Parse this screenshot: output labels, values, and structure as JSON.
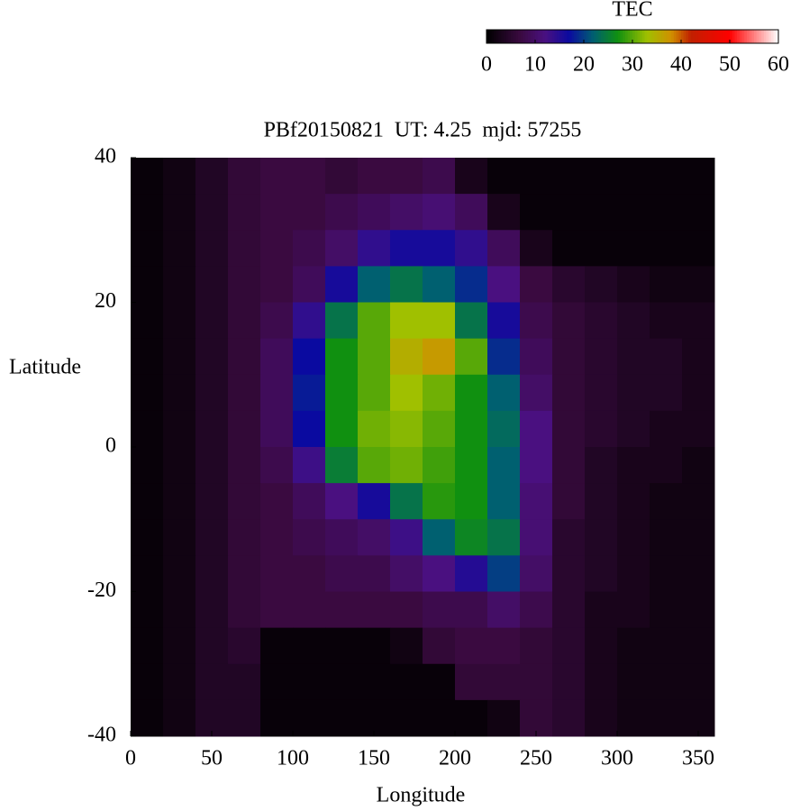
{
  "chart_data": {
    "type": "heatmap",
    "title": "PBf20150821  UT: 4.25  mjd: 57255",
    "xlabel": "Longitude",
    "ylabel": "Latitude",
    "colorbar_title": "TEC",
    "x": [
      10,
      30,
      50,
      70,
      90,
      110,
      130,
      150,
      170,
      190,
      210,
      230,
      250,
      270,
      290,
      310,
      330,
      350
    ],
    "y": [
      37.5,
      32.5,
      27.5,
      22.5,
      17.5,
      12.5,
      7.5,
      2.5,
      -2.5,
      -7.5,
      -12.5,
      -17.5,
      -22.5,
      -27.5,
      -32.5,
      -37.5
    ],
    "z": [
      [
        1,
        2,
        4,
        6,
        7,
        7,
        6,
        7,
        7,
        8,
        3,
        1,
        1,
        1,
        1,
        1,
        1,
        1
      ],
      [
        1,
        2,
        4,
        6,
        7,
        7,
        8,
        9,
        10,
        11,
        9,
        3,
        1,
        1,
        1,
        1,
        1,
        1
      ],
      [
        1,
        2,
        4,
        6,
        7,
        8,
        10,
        14,
        16,
        16,
        14,
        9,
        3,
        1,
        1,
        1,
        1,
        1
      ],
      [
        1,
        2,
        4,
        6,
        7,
        9,
        16,
        22,
        24,
        22,
        19,
        12,
        7,
        5,
        4,
        3,
        2,
        2
      ],
      [
        1,
        2,
        4,
        6,
        8,
        14,
        24,
        30,
        33,
        33,
        24,
        16,
        8,
        6,
        5,
        4,
        3,
        3
      ],
      [
        1,
        2,
        4,
        6,
        9,
        17,
        27,
        30,
        35,
        37,
        30,
        19,
        9,
        6,
        5,
        4,
        4,
        3
      ],
      [
        1,
        2,
        4,
        6,
        9,
        18,
        27,
        30,
        33,
        31,
        27,
        22,
        10,
        6,
        5,
        4,
        4,
        3
      ],
      [
        1,
        2,
        4,
        6,
        9,
        17,
        27,
        31,
        32,
        30,
        27,
        23,
        12,
        6,
        5,
        4,
        3,
        3
      ],
      [
        1,
        2,
        4,
        6,
        8,
        13,
        25,
        30,
        31,
        29,
        27,
        22,
        12,
        6,
        4,
        3,
        3,
        2
      ],
      [
        1,
        2,
        4,
        6,
        7,
        9,
        12,
        16,
        24,
        28,
        27,
        22,
        11,
        6,
        4,
        3,
        2,
        2
      ],
      [
        1,
        2,
        4,
        6,
        7,
        8,
        9,
        10,
        13,
        22,
        26,
        24,
        11,
        5,
        4,
        3,
        2,
        2
      ],
      [
        1,
        2,
        4,
        6,
        7,
        7,
        8,
        8,
        10,
        12,
        15,
        20,
        10,
        5,
        4,
        3,
        2,
        2
      ],
      [
        1,
        2,
        4,
        6,
        7,
        7,
        7,
        7,
        7,
        8,
        8,
        10,
        8,
        5,
        3,
        3,
        2,
        2
      ],
      [
        1,
        2,
        4,
        5,
        1,
        1,
        1,
        1,
        2,
        6,
        7,
        7,
        6,
        5,
        3,
        2,
        2,
        2
      ],
      [
        1,
        2,
        4,
        4,
        1,
        1,
        1,
        1,
        1,
        1,
        6,
        6,
        6,
        5,
        3,
        2,
        2,
        2
      ],
      [
        1,
        2,
        4,
        4,
        1,
        1,
        1,
        1,
        1,
        1,
        1,
        2,
        6,
        5,
        3,
        2,
        2,
        2
      ]
    ],
    "xlim": [
      0,
      360
    ],
    "xticks": [
      0,
      50,
      100,
      150,
      200,
      250,
      300,
      350
    ],
    "ylim": [
      -40,
      40
    ],
    "yticks": [
      -40,
      -20,
      0,
      20,
      40
    ],
    "clim": [
      0,
      60
    ],
    "cticks": [
      0,
      10,
      20,
      30,
      40,
      50,
      60
    ],
    "colorscale": [
      [
        0,
        "#000000"
      ],
      [
        7,
        "#3a0a40"
      ],
      [
        12,
        "#4a1080"
      ],
      [
        17,
        "#0a0aa0"
      ],
      [
        22,
        "#006070"
      ],
      [
        27,
        "#109010"
      ],
      [
        33,
        "#a0c000"
      ],
      [
        38,
        "#d09000"
      ],
      [
        42,
        "#c02000"
      ],
      [
        50,
        "#ff0000"
      ],
      [
        60,
        "#ffffff"
      ]
    ]
  }
}
